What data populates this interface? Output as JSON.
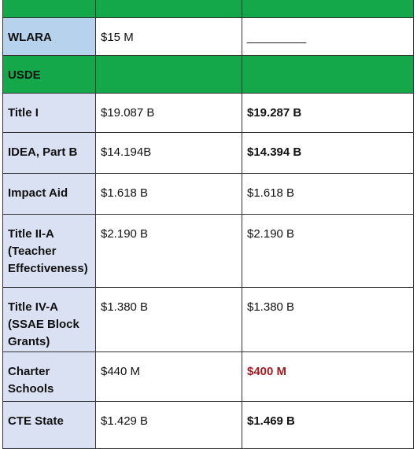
{
  "table": {
    "rows": [
      [
        "",
        "",
        ""
      ],
      [
        "WLARA",
        "$15 M",
        "_________"
      ],
      [
        "USDE",
        "",
        ""
      ],
      [
        "Title I",
        "$19.087 B",
        "$19.287 B"
      ],
      [
        "IDEA, Part B",
        "$14.194B",
        "$14.394 B"
      ],
      [
        "Impact Aid",
        "$1.618 B",
        "$1.618 B"
      ],
      [
        "Title II-A (Teacher Effectiveness)",
        "$2.190 B",
        "$2.190 B"
      ],
      [
        "Title IV-A (SSAE Block Grants)",
        "$1.380 B",
        "$1.380 B"
      ],
      [
        "Charter Schools",
        "$440 M",
        "$400 M"
      ],
      [
        "CTE State",
        "$1.429 B",
        "$1.469 B"
      ]
    ]
  }
}
